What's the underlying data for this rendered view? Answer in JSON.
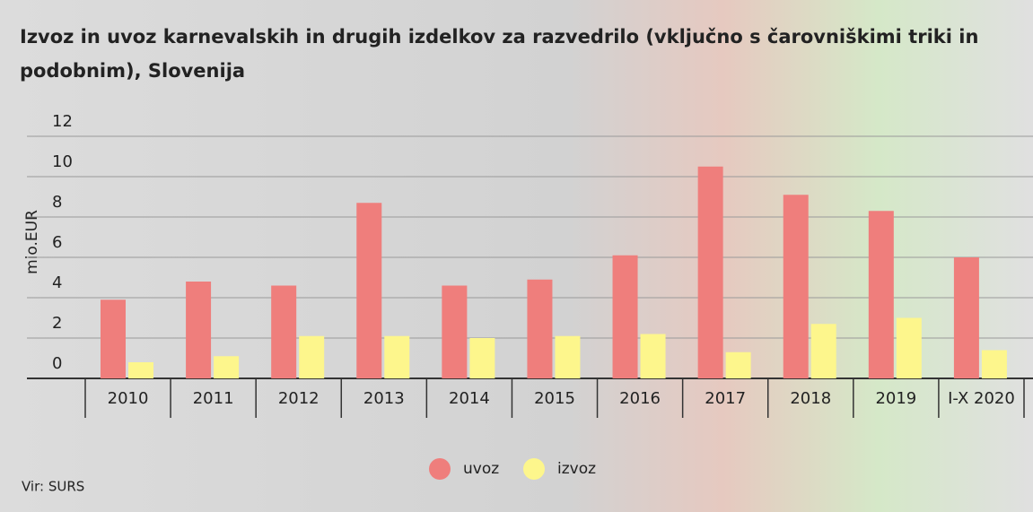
{
  "chart_data": {
    "type": "bar",
    "title": "Izvoz in uvoz karnevalskih in drugih izdelkov za razvedrilo (vključno s čarovniškimi triki in podobnim), Slovenija",
    "y_label": "mio.EUR",
    "source": "Vir: SURS",
    "categories": [
      "2010",
      "2011",
      "2012",
      "2013",
      "2014",
      "2015",
      "2016",
      "2017",
      "2018",
      "2019",
      "I-X 2020"
    ],
    "series": [
      {
        "name": "uvoz",
        "color": "#ef7e7c",
        "values": [
          3.9,
          4.8,
          4.6,
          8.7,
          4.6,
          4.9,
          6.1,
          10.5,
          9.1,
          8.3,
          6.0
        ]
      },
      {
        "name": "izvoz",
        "color": "#fdf68c",
        "values": [
          0.8,
          1.1,
          2.1,
          2.1,
          2.0,
          2.1,
          2.2,
          1.3,
          2.7,
          3.0,
          1.4
        ]
      }
    ],
    "ylim": [
      0,
      12
    ],
    "yticks": [
      0,
      2,
      4,
      6,
      8,
      10,
      12
    ],
    "grid": true
  }
}
